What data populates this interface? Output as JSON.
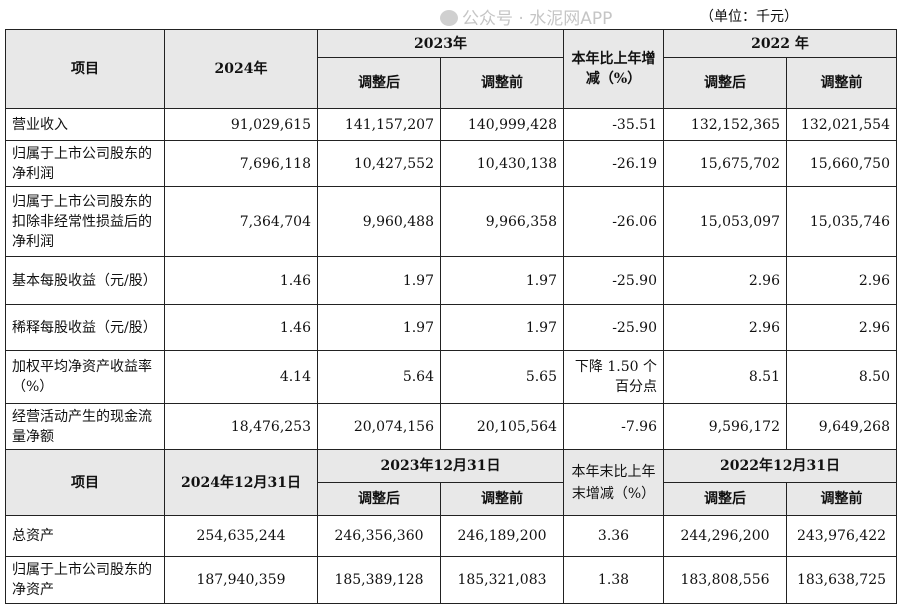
{
  "unit_note": "（单位：千元）",
  "header1": {
    "item": "项目",
    "y2024": "2024年",
    "y2023": "2023年",
    "change": "本年比上年增减（%）",
    "y2022": "2022 年",
    "adjusted_after": "调整后",
    "adjusted_before": "调整前"
  },
  "rows1": [
    {
      "label": "营业收入",
      "v2024": "91,029,615",
      "v2023a": "141,157,207",
      "v2023b": "140,999,428",
      "chg": "-35.51",
      "v2022a": "132,152,365",
      "v2022b": "132,021,554"
    },
    {
      "label": "归属于上市公司股东的净利润",
      "v2024": "7,696,118",
      "v2023a": "10,427,552",
      "v2023b": "10,430,138",
      "chg": "-26.19",
      "v2022a": "15,675,702",
      "v2022b": "15,660,750"
    },
    {
      "label": "归属于上市公司股东的扣除非经常性损益后的净利润",
      "v2024": "7,364,704",
      "v2023a": "9,960,488",
      "v2023b": "9,966,358",
      "chg": "-26.06",
      "v2022a": "15,053,097",
      "v2022b": "15,035,746"
    },
    {
      "label": "基本每股收益（元/股）",
      "v2024": "1.46",
      "v2023a": "1.97",
      "v2023b": "1.97",
      "chg": "-25.90",
      "v2022a": "2.96",
      "v2022b": "2.96"
    },
    {
      "label": "稀释每股收益（元/股）",
      "v2024": "1.46",
      "v2023a": "1.97",
      "v2023b": "1.97",
      "chg": "-25.90",
      "v2022a": "2.96",
      "v2022b": "2.96"
    },
    {
      "label": "加权平均净资产收益率（%）",
      "v2024": "4.14",
      "v2023a": "5.64",
      "v2023b": "5.65",
      "chg": "下降 1.50 个百分点",
      "v2022a": "8.51",
      "v2022b": "8.50"
    },
    {
      "label": "经营活动产生的现金流量净额",
      "v2024": "18,476,253",
      "v2023a": "20,074,156",
      "v2023b": "20,105,564",
      "chg": "-7.96",
      "v2022a": "9,596,172",
      "v2022b": "9,649,268"
    }
  ],
  "header2": {
    "item": "项目",
    "d2024": "2024年12月31日",
    "d2023": "2023年12月31日",
    "change": "本年末比上年末增减（%）",
    "d2022": "2022年12月31日",
    "adjusted_after": "调整后",
    "adjusted_before": "调整前"
  },
  "rows2": [
    {
      "label": "总资产",
      "v2024": "254,635,244",
      "v2023a": "246,356,360",
      "v2023b": "246,189,200",
      "chg": "3.36",
      "v2022a": "244,296,200",
      "v2022b": "243,976,422"
    },
    {
      "label": "归属于上市公司股东的净资产",
      "v2024": "187,940,359",
      "v2023a": "185,389,128",
      "v2023b": "185,321,083",
      "chg": "1.38",
      "v2022a": "183,808,556",
      "v2022b": "183,638,725"
    }
  ],
  "watermark": "公众号 · 水泥网APP"
}
